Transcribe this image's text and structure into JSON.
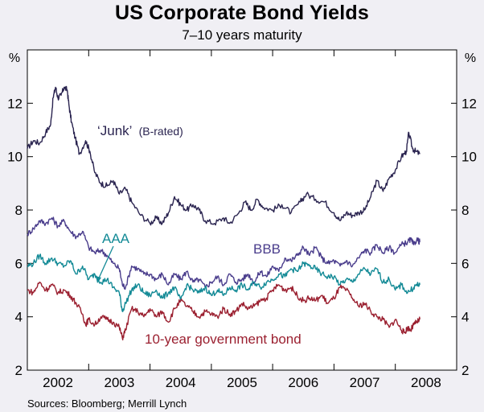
{
  "chart_data": {
    "type": "line",
    "title": "US Corporate Bond Yields",
    "subtitle": "7–10 years maturity",
    "ylabel_left": "%",
    "ylabel_right": "%",
    "ylim": [
      2,
      14
    ],
    "yticks": [
      2,
      4,
      6,
      8,
      10,
      12
    ],
    "xlim": [
      2001.5,
      2008.5
    ],
    "xticks": [
      {
        "label": "2002",
        "pos": 2002.0
      },
      {
        "label": "2003",
        "pos": 2003.0
      },
      {
        "label": "2004",
        "pos": 2004.0
      },
      {
        "label": "2005",
        "pos": 2005.0
      },
      {
        "label": "2006",
        "pos": 2006.0
      },
      {
        "label": "2007",
        "pos": 2007.0
      },
      {
        "label": "2008",
        "pos": 2008.0
      }
    ],
    "year_dividers": [
      2002.5,
      2003.5,
      2004.5,
      2005.5,
      2006.5,
      2007.5
    ],
    "grid": false,
    "series": [
      {
        "name": "'Junk' (B-rated)",
        "label_main": "‘Junk’",
        "label_sub": "(B-rated)",
        "color": "#2a2450",
        "points": [
          [
            2001.5,
            10.3
          ],
          [
            2001.6,
            10.6
          ],
          [
            2001.7,
            10.5
          ],
          [
            2001.8,
            10.9
          ],
          [
            2001.88,
            11.2
          ],
          [
            2001.92,
            12.2
          ],
          [
            2001.96,
            12.6
          ],
          [
            2002.0,
            12.2
          ],
          [
            2002.05,
            12.3
          ],
          [
            2002.1,
            12.6
          ],
          [
            2002.15,
            12.5
          ],
          [
            2002.18,
            11.9
          ],
          [
            2002.22,
            11.3
          ],
          [
            2002.28,
            10.7
          ],
          [
            2002.35,
            10.1
          ],
          [
            2002.45,
            10.6
          ],
          [
            2002.52,
            10.2
          ],
          [
            2002.6,
            9.4
          ],
          [
            2002.7,
            9.0
          ],
          [
            2002.8,
            8.9
          ],
          [
            2002.9,
            9.1
          ],
          [
            2003.0,
            8.6
          ],
          [
            2003.1,
            8.8
          ],
          [
            2003.2,
            8.3
          ],
          [
            2003.35,
            7.8
          ],
          [
            2003.5,
            7.5
          ],
          [
            2003.6,
            7.7
          ],
          [
            2003.7,
            7.5
          ],
          [
            2003.8,
            7.9
          ],
          [
            2003.9,
            8.5
          ],
          [
            2004.0,
            8.2
          ],
          [
            2004.1,
            8.0
          ],
          [
            2004.2,
            8.2
          ],
          [
            2004.3,
            8.0
          ],
          [
            2004.4,
            7.6
          ],
          [
            2004.55,
            7.5
          ],
          [
            2004.7,
            7.7
          ],
          [
            2004.8,
            7.5
          ],
          [
            2004.95,
            7.9
          ],
          [
            2005.05,
            8.3
          ],
          [
            2005.15,
            8.0
          ],
          [
            2005.25,
            8.4
          ],
          [
            2005.35,
            8.1
          ],
          [
            2005.5,
            8.0
          ],
          [
            2005.65,
            8.2
          ],
          [
            2005.8,
            7.9
          ],
          [
            2005.95,
            8.3
          ],
          [
            2006.05,
            8.6
          ],
          [
            2006.2,
            8.4
          ],
          [
            2006.35,
            8.3
          ],
          [
            2006.5,
            7.9
          ],
          [
            2006.6,
            7.6
          ],
          [
            2006.7,
            7.9
          ],
          [
            2006.8,
            7.8
          ],
          [
            2006.9,
            7.9
          ],
          [
            2007.0,
            8.0
          ],
          [
            2007.1,
            8.5
          ],
          [
            2007.2,
            9.1
          ],
          [
            2007.3,
            8.7
          ],
          [
            2007.4,
            9.2
          ],
          [
            2007.5,
            9.5
          ],
          [
            2007.6,
            10.0
          ],
          [
            2007.68,
            10.2
          ],
          [
            2007.72,
            10.9
          ],
          [
            2007.78,
            10.3
          ],
          [
            2007.83,
            10.2
          ],
          [
            2007.9,
            10.1
          ]
        ]
      },
      {
        "name": "BBB",
        "color": "#4a3d8c",
        "points": [
          [
            2001.5,
            7.1
          ],
          [
            2001.6,
            7.3
          ],
          [
            2001.7,
            7.6
          ],
          [
            2001.8,
            7.5
          ],
          [
            2001.9,
            7.7
          ],
          [
            2002.0,
            7.4
          ],
          [
            2002.1,
            7.6
          ],
          [
            2002.2,
            7.2
          ],
          [
            2002.3,
            7.0
          ],
          [
            2002.4,
            7.2
          ],
          [
            2002.5,
            6.6
          ],
          [
            2002.6,
            6.4
          ],
          [
            2002.7,
            6.5
          ],
          [
            2002.8,
            6.3
          ],
          [
            2002.9,
            6.0
          ],
          [
            2003.0,
            5.8
          ],
          [
            2003.05,
            5.2
          ],
          [
            2003.1,
            5.1
          ],
          [
            2003.2,
            5.9
          ],
          [
            2003.3,
            5.8
          ],
          [
            2003.4,
            5.6
          ],
          [
            2003.5,
            5.6
          ],
          [
            2003.6,
            5.4
          ],
          [
            2003.7,
            5.6
          ],
          [
            2003.8,
            5.2
          ],
          [
            2003.9,
            5.6
          ],
          [
            2004.0,
            5.4
          ],
          [
            2004.1,
            5.7
          ],
          [
            2004.2,
            5.3
          ],
          [
            2004.3,
            5.4
          ],
          [
            2004.4,
            5.1
          ],
          [
            2004.5,
            5.3
          ],
          [
            2004.6,
            5.5
          ],
          [
            2004.7,
            5.2
          ],
          [
            2004.8,
            5.6
          ],
          [
            2004.9,
            5.3
          ],
          [
            2005.0,
            5.4
          ],
          [
            2005.1,
            5.6
          ],
          [
            2005.2,
            5.3
          ],
          [
            2005.3,
            5.7
          ],
          [
            2005.4,
            5.5
          ],
          [
            2005.5,
            5.9
          ],
          [
            2005.6,
            5.7
          ],
          [
            2005.7,
            6.2
          ],
          [
            2005.8,
            6.1
          ],
          [
            2005.9,
            6.3
          ],
          [
            2006.0,
            6.6
          ],
          [
            2006.1,
            6.3
          ],
          [
            2006.2,
            6.6
          ],
          [
            2006.3,
            6.2
          ],
          [
            2006.4,
            6.0
          ],
          [
            2006.5,
            6.1
          ],
          [
            2006.6,
            5.9
          ],
          [
            2006.7,
            6.1
          ],
          [
            2006.8,
            5.9
          ],
          [
            2006.9,
            6.2
          ],
          [
            2007.0,
            6.5
          ],
          [
            2007.1,
            6.4
          ],
          [
            2007.2,
            6.7
          ],
          [
            2007.3,
            6.4
          ],
          [
            2007.4,
            6.6
          ],
          [
            2007.5,
            6.4
          ],
          [
            2007.6,
            6.7
          ],
          [
            2007.7,
            6.8
          ],
          [
            2007.75,
            6.9
          ],
          [
            2007.8,
            6.7
          ],
          [
            2007.85,
            6.9
          ],
          [
            2007.9,
            6.8
          ]
        ]
      },
      {
        "name": "AAA",
        "color": "#138a96",
        "points": [
          [
            2001.5,
            5.9
          ],
          [
            2001.6,
            6.0
          ],
          [
            2001.7,
            6.3
          ],
          [
            2001.8,
            6.0
          ],
          [
            2001.9,
            6.2
          ],
          [
            2002.0,
            6.0
          ],
          [
            2002.1,
            5.9
          ],
          [
            2002.2,
            6.1
          ],
          [
            2002.3,
            5.6
          ],
          [
            2002.4,
            5.9
          ],
          [
            2002.5,
            5.4
          ],
          [
            2002.6,
            5.6
          ],
          [
            2002.7,
            5.3
          ],
          [
            2002.8,
            5.4
          ],
          [
            2002.9,
            5.1
          ],
          [
            2003.0,
            4.9
          ],
          [
            2003.05,
            4.2
          ],
          [
            2003.1,
            4.5
          ],
          [
            2003.2,
            5.0
          ],
          [
            2003.3,
            5.2
          ],
          [
            2003.4,
            4.9
          ],
          [
            2003.5,
            4.8
          ],
          [
            2003.6,
            5.0
          ],
          [
            2003.7,
            4.7
          ],
          [
            2003.8,
            4.9
          ],
          [
            2003.9,
            5.1
          ],
          [
            2004.0,
            4.6
          ],
          [
            2004.1,
            5.2
          ],
          [
            2004.2,
            5.0
          ],
          [
            2004.3,
            4.9
          ],
          [
            2004.4,
            5.1
          ],
          [
            2004.5,
            4.8
          ],
          [
            2004.6,
            5.0
          ],
          [
            2004.7,
            4.8
          ],
          [
            2004.8,
            5.1
          ],
          [
            2004.9,
            5.0
          ],
          [
            2005.0,
            5.2
          ],
          [
            2005.1,
            5.0
          ],
          [
            2005.2,
            5.3
          ],
          [
            2005.3,
            5.1
          ],
          [
            2005.4,
            5.3
          ],
          [
            2005.5,
            5.4
          ],
          [
            2005.6,
            5.6
          ],
          [
            2005.7,
            5.5
          ],
          [
            2005.8,
            5.8
          ],
          [
            2005.9,
            5.7
          ],
          [
            2006.0,
            6.0
          ],
          [
            2006.1,
            5.9
          ],
          [
            2006.2,
            5.8
          ],
          [
            2006.3,
            5.6
          ],
          [
            2006.4,
            5.5
          ],
          [
            2006.5,
            5.5
          ],
          [
            2006.6,
            5.2
          ],
          [
            2006.7,
            5.4
          ],
          [
            2006.8,
            5.3
          ],
          [
            2006.9,
            5.6
          ],
          [
            2007.0,
            5.8
          ],
          [
            2007.1,
            5.6
          ],
          [
            2007.2,
            5.8
          ],
          [
            2007.3,
            5.3
          ],
          [
            2007.4,
            5.4
          ],
          [
            2007.5,
            5.0
          ],
          [
            2007.6,
            5.2
          ],
          [
            2007.7,
            4.9
          ],
          [
            2007.8,
            5.1
          ],
          [
            2007.85,
            5.2
          ],
          [
            2007.9,
            5.2
          ]
        ]
      },
      {
        "name": "10-year government bond",
        "color": "#9b2030",
        "points": [
          [
            2001.5,
            5.0
          ],
          [
            2001.6,
            4.9
          ],
          [
            2001.7,
            5.3
          ],
          [
            2001.8,
            5.0
          ],
          [
            2001.9,
            5.2
          ],
          [
            2002.0,
            4.9
          ],
          [
            2002.1,
            5.0
          ],
          [
            2002.2,
            4.8
          ],
          [
            2002.3,
            4.5
          ],
          [
            2002.4,
            4.1
          ],
          [
            2002.45,
            3.7
          ],
          [
            2002.5,
            3.9
          ],
          [
            2002.6,
            3.7
          ],
          [
            2002.7,
            4.0
          ],
          [
            2002.8,
            3.9
          ],
          [
            2002.9,
            3.8
          ],
          [
            2003.0,
            3.6
          ],
          [
            2003.05,
            3.2
          ],
          [
            2003.1,
            3.5
          ],
          [
            2003.2,
            4.3
          ],
          [
            2003.3,
            4.2
          ],
          [
            2003.4,
            4.0
          ],
          [
            2003.5,
            4.3
          ],
          [
            2003.6,
            4.0
          ],
          [
            2003.7,
            4.2
          ],
          [
            2003.8,
            3.8
          ],
          [
            2003.9,
            4.3
          ],
          [
            2004.0,
            4.6
          ],
          [
            2004.1,
            4.4
          ],
          [
            2004.2,
            4.2
          ],
          [
            2004.3,
            4.0
          ],
          [
            2004.4,
            4.2
          ],
          [
            2004.5,
            4.1
          ],
          [
            2004.6,
            4.0
          ],
          [
            2004.7,
            4.3
          ],
          [
            2004.8,
            4.1
          ],
          [
            2004.9,
            4.2
          ],
          [
            2005.0,
            4.5
          ],
          [
            2005.1,
            4.3
          ],
          [
            2005.2,
            4.4
          ],
          [
            2005.3,
            4.6
          ],
          [
            2005.4,
            4.7
          ],
          [
            2005.5,
            5.0
          ],
          [
            2005.6,
            5.2
          ],
          [
            2005.7,
            5.0
          ],
          [
            2005.8,
            5.1
          ],
          [
            2005.9,
            4.8
          ],
          [
            2006.0,
            4.6
          ],
          [
            2006.1,
            4.7
          ],
          [
            2006.2,
            4.6
          ],
          [
            2006.3,
            4.8
          ],
          [
            2006.4,
            4.5
          ],
          [
            2006.5,
            4.7
          ],
          [
            2006.6,
            5.1
          ],
          [
            2006.7,
            5.0
          ],
          [
            2006.8,
            4.7
          ],
          [
            2006.9,
            4.4
          ],
          [
            2007.0,
            4.5
          ],
          [
            2007.1,
            4.2
          ],
          [
            2007.2,
            4.0
          ],
          [
            2007.3,
            3.9
          ],
          [
            2007.4,
            3.6
          ],
          [
            2007.5,
            3.9
          ],
          [
            2007.6,
            3.5
          ],
          [
            2007.65,
            3.4
          ],
          [
            2007.7,
            3.6
          ],
          [
            2007.75,
            3.5
          ],
          [
            2007.8,
            3.7
          ],
          [
            2007.85,
            3.8
          ],
          [
            2007.9,
            3.9
          ]
        ]
      }
    ],
    "annotations": {
      "aaa_label": "AAA",
      "bbb_label": "BBB",
      "gov_label": "10-year government bond"
    }
  },
  "footer": {
    "source": "Sources: Bloomberg; Merrill Lynch"
  }
}
